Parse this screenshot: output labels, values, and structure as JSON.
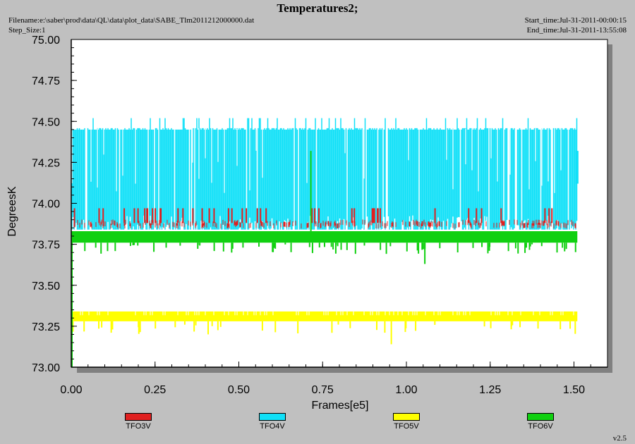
{
  "header": {
    "title": "Temperatures2;",
    "filename": "Filename:e:\\saber\\prod\\data\\QL\\data\\plot_data\\SABE_Tlm2011212000000.dat",
    "step_size": "Step_Size:1",
    "start_time": "Start_time:Jul-31-2011-00:00:15",
    "end_time": "End_time:Jul-31-2011-13:55:08"
  },
  "version": "v2.5",
  "chart_data": {
    "type": "line",
    "title": "Temperatures2;",
    "xlabel": "Frames[e5]",
    "ylabel": "DegreesK",
    "xlim": [
      0,
      1.6
    ],
    "ylim": [
      73.0,
      75.0
    ],
    "x_ticks": [
      "0.00",
      "0.25",
      "0.50",
      "0.75",
      "1.00",
      "1.25",
      "1.50"
    ],
    "y_ticks": [
      "73.00",
      "73.25",
      "73.50",
      "73.75",
      "74.00",
      "74.25",
      "74.50",
      "74.75",
      "75.00"
    ],
    "legend_position": "bottom",
    "series": [
      {
        "name": "TFO3V",
        "color": "#e02020",
        "x_range": [
          0.0,
          1.51
        ],
        "base": 73.88,
        "low": 73.84,
        "high": 73.97
      },
      {
        "name": "TFO4V",
        "color": "#10e0f8",
        "x_range": [
          0.0,
          1.51
        ],
        "base": 74.45,
        "low": 73.84,
        "high": 74.52
      },
      {
        "name": "TFO5V",
        "color": "#ffff00",
        "x_range": [
          0.0,
          1.51
        ],
        "base": 73.3,
        "low": 73.14,
        "high": 73.34
      },
      {
        "name": "TFO6V",
        "color": "#10d010",
        "x_range": [
          0.0,
          1.51
        ],
        "base": 73.8,
        "low": 73.63,
        "high": 74.32
      }
    ]
  }
}
